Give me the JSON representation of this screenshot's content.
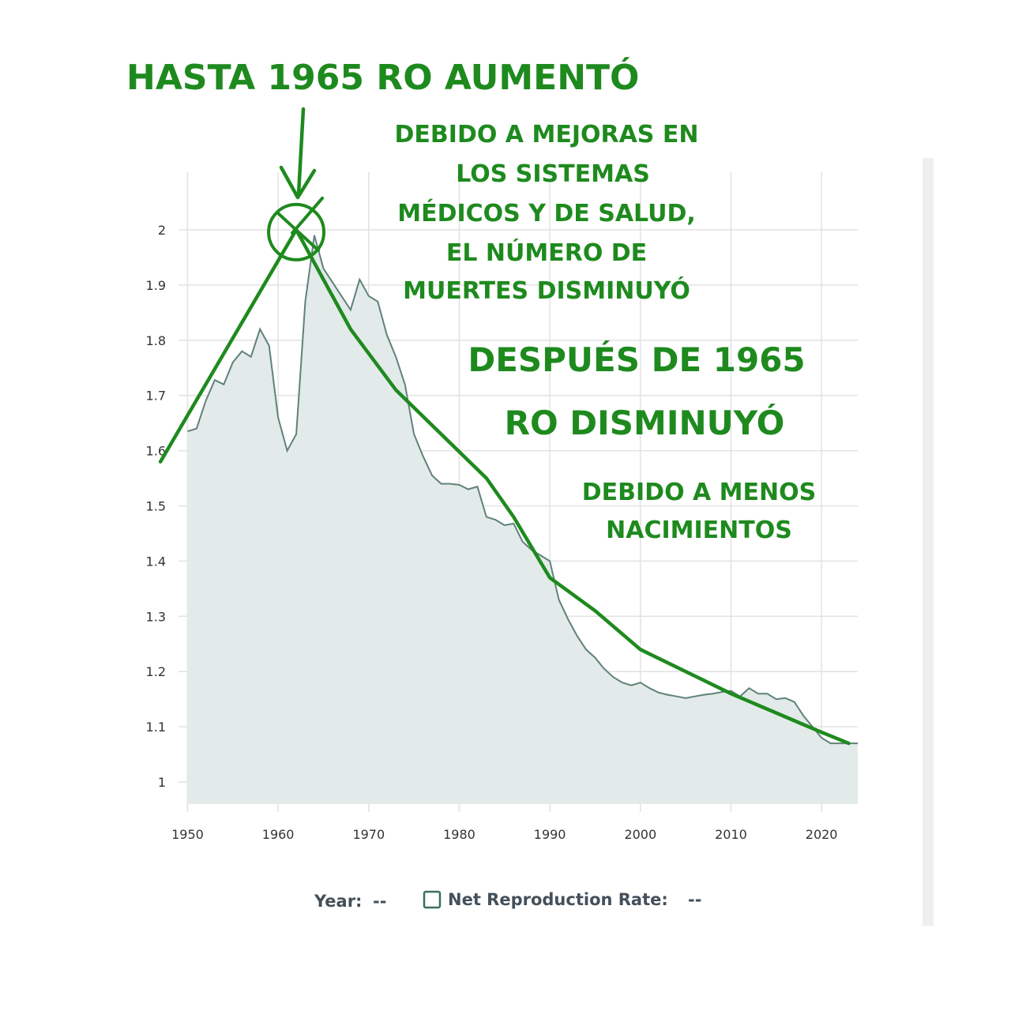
{
  "chart_data": {
    "type": "area",
    "title": "",
    "xlabel": "",
    "ylabel": "",
    "xlim": [
      1949,
      2024
    ],
    "ylim": [
      0.96,
      2.08
    ],
    "xticks": [
      "1950",
      "1960",
      "1970",
      "1980",
      "1990",
      "2000",
      "2010",
      "2020"
    ],
    "yticks": [
      "1",
      "1.1",
      "1.2",
      "1.3",
      "1.4",
      "1.5",
      "1.6",
      "1.7",
      "1.8",
      "1.9",
      "2"
    ],
    "grid": true,
    "series": [
      {
        "name": "Net Reproduction Rate",
        "x": [
          1950,
          1951,
          1952,
          1953,
          1954,
          1955,
          1956,
          1957,
          1958,
          1959,
          1960,
          1961,
          1962,
          1963,
          1964,
          1965,
          1966,
          1967,
          1968,
          1969,
          1970,
          1971,
          1972,
          1973,
          1974,
          1975,
          1976,
          1977,
          1978,
          1979,
          1980,
          1981,
          1982,
          1983,
          1984,
          1985,
          1986,
          1987,
          1988,
          1989,
          1990,
          1991,
          1992,
          1993,
          1994,
          1995,
          1996,
          1997,
          1998,
          1999,
          2000,
          2001,
          2002,
          2003,
          2004,
          2005,
          2006,
          2007,
          2008,
          2009,
          2010,
          2011,
          2012,
          2013,
          2014,
          2015,
          2016,
          2017,
          2018,
          2019,
          2020,
          2021,
          2022,
          2023,
          2024
        ],
        "values": [
          1.635,
          1.64,
          1.69,
          1.728,
          1.72,
          1.76,
          1.78,
          1.77,
          1.82,
          1.79,
          1.66,
          1.6,
          1.63,
          1.87,
          1.99,
          1.93,
          1.905,
          1.88,
          1.855,
          1.91,
          1.88,
          1.87,
          1.81,
          1.77,
          1.72,
          1.63,
          1.59,
          1.555,
          1.54,
          1.54,
          1.538,
          1.53,
          1.535,
          1.48,
          1.475,
          1.465,
          1.468,
          1.435,
          1.42,
          1.41,
          1.4,
          1.33,
          1.295,
          1.265,
          1.24,
          1.225,
          1.205,
          1.19,
          1.18,
          1.175,
          1.18,
          1.17,
          1.162,
          1.158,
          1.155,
          1.152,
          1.155,
          1.158,
          1.16,
          1.163,
          1.165,
          1.155,
          1.17,
          1.16,
          1.16,
          1.15,
          1.152,
          1.145,
          1.12,
          1.1,
          1.08,
          1.07,
          1.07,
          1.07,
          1.07
        ]
      }
    ],
    "annotations": [
      "HASTA 1965 RO AUMENTÓ",
      "DEBIDO A MEJORAS EN",
      "LOS SISTEMAS",
      "MÉDICOS Y DE SALUD,",
      "EL NÚMERO DE",
      "MUERTES DISMINUYÓ",
      "DESPUÉS DE 1965",
      "RO DISMINUYÓ",
      "DEBIDO A MENOS",
      "NACIMIENTOS"
    ],
    "trend_lines": [
      {
        "name": "rise",
        "x": [
          1947,
          1962
        ],
        "values": [
          1.58,
          2.0
        ]
      },
      {
        "name": "decline",
        "x": [
          1962,
          1968,
          1973,
          1978,
          1983,
          1986,
          1990,
          1995,
          2000,
          2010,
          2020,
          2023
        ],
        "values": [
          2.0,
          1.82,
          1.71,
          1.63,
          1.55,
          1.48,
          1.37,
          1.31,
          1.24,
          1.16,
          1.09,
          1.07
        ]
      }
    ],
    "highlight": {
      "x": 1962,
      "value": 2.0
    }
  },
  "legend": {
    "year_label": "Year:",
    "year_value": "--",
    "series_label": "Net Reproduction Rate:",
    "series_value": "--",
    "swatch_color": "#3c6e62"
  },
  "colors": {
    "area_fill": "#e3eaea",
    "area_line": "#5f8279",
    "grid": "#e2e2e2",
    "annotation": "#1e8a1e"
  }
}
